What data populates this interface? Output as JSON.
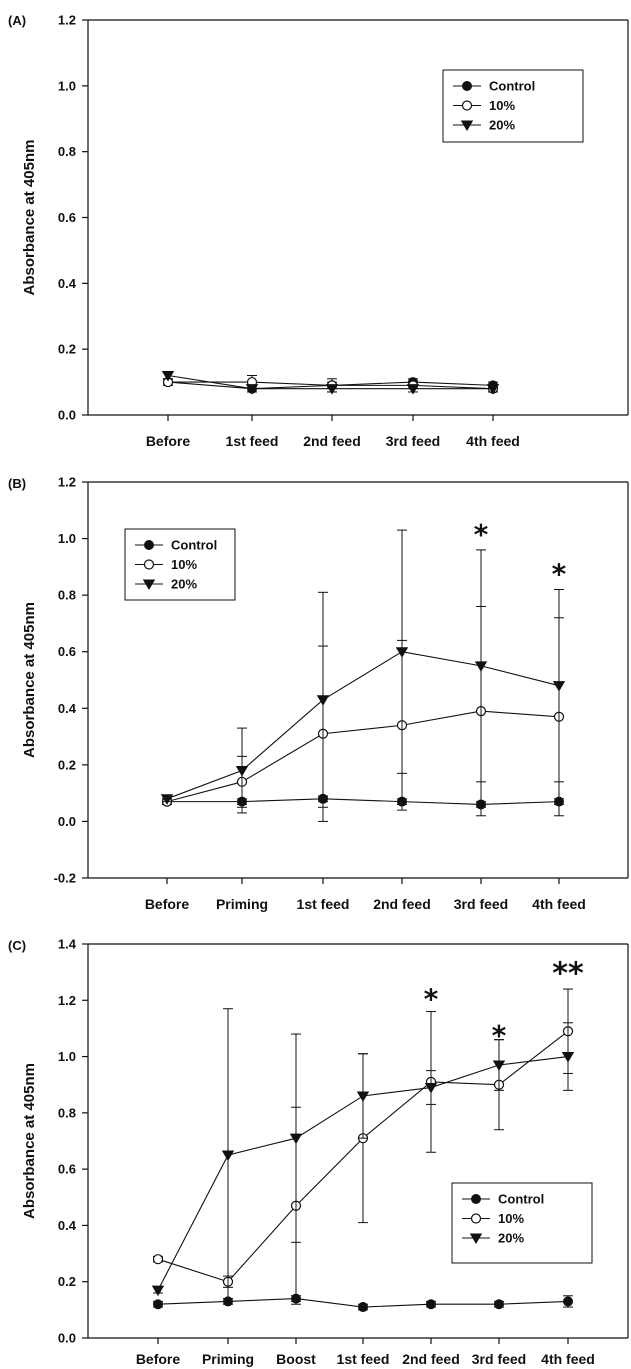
{
  "chart_data": [
    {
      "panel": "(A)",
      "type": "line",
      "ylabel": "Absorbance at 405nm",
      "xlabel": "",
      "ylim": [
        0,
        1.2
      ],
      "yticks": [
        "0.0",
        "0.2",
        "0.4",
        "0.6",
        "0.8",
        "1.0",
        "1.2"
      ],
      "categories": [
        "Before",
        "1st feed",
        "2nd feed",
        "3rd feed",
        "4th feed"
      ],
      "legend_position": "top-right",
      "series": [
        {
          "name": "Control",
          "marker": "filled-circle",
          "values": [
            0.1,
            0.08,
            0.09,
            0.1,
            0.09
          ],
          "err_up": [
            0.01,
            0.01,
            0.01,
            0.01,
            0.01
          ],
          "err_down": [
            0.01,
            0.01,
            0.01,
            0.01,
            0.01
          ]
        },
        {
          "name": "10%",
          "marker": "open-circle",
          "values": [
            0.1,
            0.1,
            0.09,
            0.09,
            0.08
          ],
          "err_up": [
            0.01,
            0.02,
            0.02,
            0.01,
            0.01
          ],
          "err_down": [
            0.01,
            0.02,
            0.02,
            0.01,
            0.01
          ]
        },
        {
          "name": "20%",
          "marker": "filled-triangle-down",
          "values": [
            0.12,
            0.08,
            0.08,
            0.08,
            0.08
          ],
          "err_up": [
            0.01,
            0.01,
            0.01,
            0.01,
            0.01
          ],
          "err_down": [
            0.01,
            0.01,
            0.01,
            0.01,
            0.01
          ]
        }
      ],
      "annotations": []
    },
    {
      "panel": "(B)",
      "type": "line",
      "ylabel": "Absorbance at 405nm",
      "xlabel": "",
      "ylim": [
        -0.2,
        1.2
      ],
      "yticks": [
        "-0.2",
        "0.0",
        "0.2",
        "0.4",
        "0.6",
        "0.8",
        "1.0",
        "1.2"
      ],
      "categories": [
        "Before",
        "Priming",
        "1st feed",
        "2nd feed",
        "3rd feed",
        "4th feed"
      ],
      "legend_position": "top-left",
      "series": [
        {
          "name": "Control",
          "marker": "filled-circle",
          "values": [
            0.07,
            0.07,
            0.08,
            0.07,
            0.06,
            0.07
          ],
          "err_up": [
            0.01,
            0.01,
            0.01,
            0.01,
            0.01,
            0.01
          ],
          "err_down": [
            0.01,
            0.01,
            0.01,
            0.01,
            0.01,
            0.01
          ]
        },
        {
          "name": "10%",
          "marker": "open-circle",
          "values": [
            0.07,
            0.14,
            0.31,
            0.34,
            0.39,
            0.37
          ],
          "err_up": [
            0.01,
            0.09,
            0.31,
            0.3,
            0.37,
            0.35
          ],
          "err_down": [
            0.01,
            0.09,
            0.31,
            0.3,
            0.37,
            0.35
          ]
        },
        {
          "name": "20%",
          "marker": "filled-triangle-down",
          "values": [
            0.08,
            0.18,
            0.43,
            0.6,
            0.55,
            0.48
          ],
          "err_up": [
            0.01,
            0.15,
            0.38,
            0.43,
            0.41,
            0.34
          ],
          "err_down": [
            0.01,
            0.15,
            0.38,
            0.43,
            0.41,
            0.34
          ]
        }
      ],
      "annotations": [
        {
          "category": "3rd feed",
          "text": "*",
          "y": 1.03
        },
        {
          "category": "4th feed",
          "text": "*",
          "y": 0.89
        }
      ]
    },
    {
      "panel": "(C)",
      "type": "line",
      "ylabel": "Absorbance at 405nm",
      "xlabel": "",
      "ylim": [
        0,
        1.4
      ],
      "yticks": [
        "0.0",
        "0.2",
        "0.4",
        "0.6",
        "0.8",
        "1.0",
        "1.2",
        "1.4"
      ],
      "categories": [
        "Before",
        "Priming",
        "Boost",
        "1st feed",
        "2nd feed",
        "3rd feed",
        "4th feed"
      ],
      "legend_position": "bottom-right",
      "series": [
        {
          "name": "Control",
          "marker": "filled-circle",
          "values": [
            0.12,
            0.13,
            0.14,
            0.11,
            0.12,
            0.12,
            0.13
          ],
          "err_up": [
            0.01,
            0.01,
            0.01,
            0.01,
            0.01,
            0.01,
            0.02
          ],
          "err_down": [
            0.01,
            0.01,
            0.01,
            0.01,
            0.01,
            0.01,
            0.02
          ]
        },
        {
          "name": "10%",
          "marker": "open-circle",
          "values": [
            0.28,
            0.2,
            0.47,
            0.71,
            0.91,
            0.9,
            1.09
          ],
          "err_up": [
            0.01,
            0.02,
            0.35,
            0.3,
            0.25,
            0.16,
            0.15
          ],
          "err_down": [
            0.01,
            0.02,
            0.35,
            0.3,
            0.25,
            0.16,
            0.15
          ]
        },
        {
          "name": "20%",
          "marker": "filled-triangle-down",
          "values": [
            0.17,
            0.65,
            0.71,
            0.86,
            0.89,
            0.97,
            1.0
          ],
          "err_up": [
            0.01,
            0.52,
            0.37,
            0.15,
            0.06,
            0.09,
            0.12
          ],
          "err_down": [
            0.01,
            0.52,
            0.37,
            0.15,
            0.06,
            0.09,
            0.12
          ]
        }
      ],
      "annotations": [
        {
          "category": "2nd feed",
          "text": "*",
          "y": 1.22
        },
        {
          "category": "3rd feed",
          "text": "*",
          "y": 1.09
        },
        {
          "category": "4th feed",
          "text": "**",
          "y": 1.31
        }
      ]
    }
  ]
}
